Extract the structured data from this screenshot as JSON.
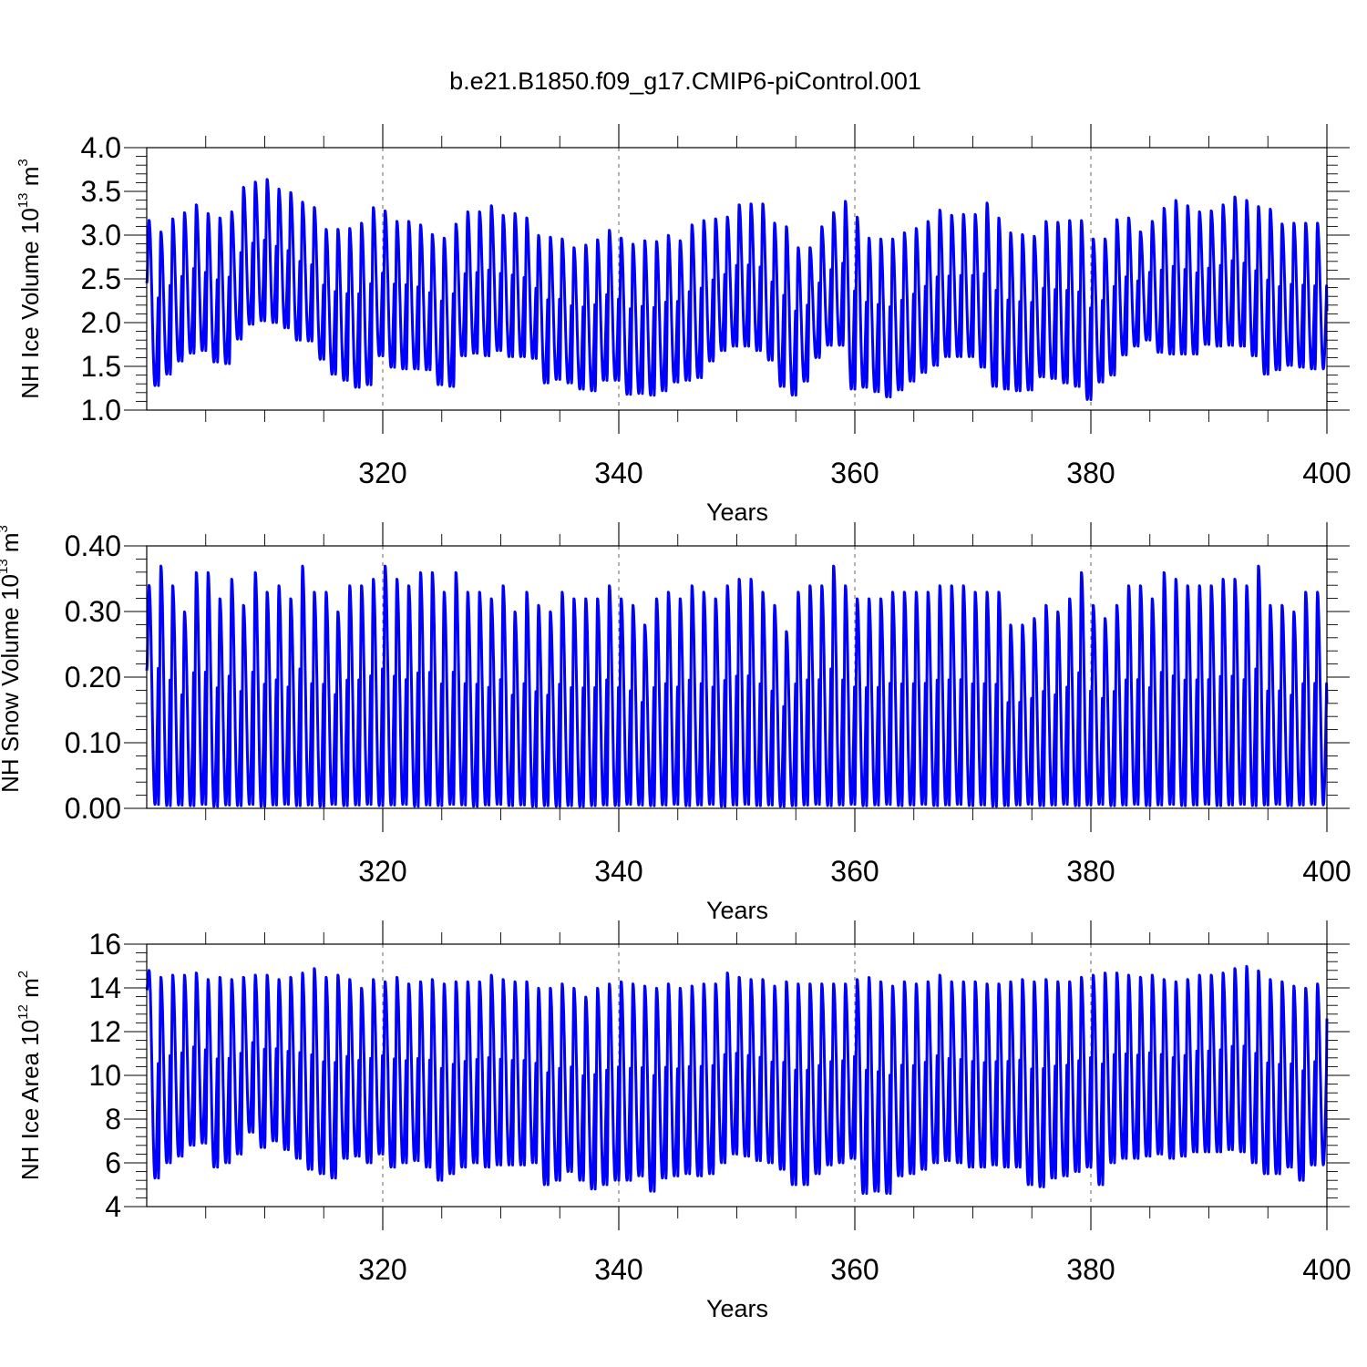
{
  "figure": {
    "title": "b.e21.B1850.f09_g17.CMIP6-piControl.001"
  },
  "chart_data": [
    {
      "type": "line",
      "name": "ice-volume",
      "ylabel_text": "NH Ice Volume 10",
      "ylabel_exp": "13",
      "ylabel_unit": "m",
      "ylabel_unit_exp": "3",
      "xlabel": "Years",
      "xlim": [
        300,
        400
      ],
      "ylim": [
        1.0,
        4.0
      ],
      "yticks": [
        "1.0",
        "1.5",
        "2.0",
        "2.5",
        "3.0",
        "3.5",
        "4.0"
      ],
      "ytick_values": [
        1.0,
        1.5,
        2.0,
        2.5,
        3.0,
        3.5,
        4.0
      ],
      "xticks": [
        "320",
        "340",
        "360",
        "380",
        "400"
      ],
      "xtick_values": [
        320,
        340,
        360,
        380,
        400
      ],
      "grid": "dashed vertical at major x ticks",
      "line_color": "#0000ff",
      "series": [
        {
          "values_note": "annual max/min per year starting 300",
          "annual_max": [
            3.17,
            3.04,
            3.19,
            3.26,
            3.35,
            3.25,
            3.2,
            3.27,
            3.55,
            3.61,
            3.64,
            3.53,
            3.49,
            3.38,
            3.32,
            3.07,
            3.07,
            3.08,
            3.14,
            3.32,
            3.28,
            3.16,
            3.16,
            3.12,
            3.01,
            2.97,
            3.13,
            3.27,
            3.27,
            3.34,
            3.23,
            3.25,
            3.2,
            3.0,
            2.98,
            2.96,
            2.86,
            2.89,
            2.95,
            3.06,
            2.97,
            2.9,
            2.94,
            2.93,
            3.0,
            2.94,
            3.12,
            3.17,
            3.19,
            3.21,
            3.35,
            3.36,
            3.36,
            3.14,
            3.1,
            2.86,
            2.86,
            3.1,
            3.26,
            3.39,
            3.21,
            2.97,
            2.96,
            2.96,
            3.03,
            3.08,
            3.16,
            3.29,
            3.23,
            3.24,
            3.24,
            3.37,
            3.2,
            3.03,
            3.01,
            2.99,
            3.16,
            3.15,
            3.17,
            3.17,
            2.96,
            2.96,
            3.18,
            3.2,
            3.04,
            3.16,
            3.31,
            3.4,
            3.34,
            3.27,
            3.28,
            3.35,
            3.44,
            3.4,
            3.33,
            3.3,
            3.13,
            3.14,
            3.14,
            3.14
          ],
          "annual_min": [
            1.28,
            1.41,
            1.56,
            1.65,
            1.68,
            1.55,
            1.53,
            1.81,
            1.98,
            2.02,
            2.0,
            1.94,
            1.8,
            1.79,
            1.58,
            1.41,
            1.34,
            1.26,
            1.29,
            1.62,
            1.49,
            1.47,
            1.47,
            1.46,
            1.29,
            1.27,
            1.62,
            1.65,
            1.62,
            1.68,
            1.61,
            1.61,
            1.59,
            1.31,
            1.35,
            1.31,
            1.24,
            1.22,
            1.34,
            1.34,
            1.18,
            1.19,
            1.17,
            1.22,
            1.32,
            1.34,
            1.37,
            1.56,
            1.68,
            1.73,
            1.73,
            1.68,
            1.57,
            1.27,
            1.17,
            1.33,
            1.6,
            1.74,
            1.74,
            1.24,
            1.26,
            1.21,
            1.15,
            1.23,
            1.33,
            1.43,
            1.51,
            1.61,
            1.61,
            1.61,
            1.49,
            1.27,
            1.24,
            1.22,
            1.23,
            1.38,
            1.36,
            1.31,
            1.27,
            1.12,
            1.32,
            1.4,
            1.63,
            1.73,
            1.8,
            1.66,
            1.64,
            1.64,
            1.64,
            1.75,
            1.73,
            1.74,
            1.73,
            1.62,
            1.41,
            1.46,
            1.51,
            1.49,
            1.47,
            1.47
          ],
          "start_value": 2.45,
          "end_value": 2.13
        }
      ]
    },
    {
      "type": "line",
      "name": "snow-volume",
      "ylabel_text": "NH Snow Volume 10",
      "ylabel_exp": "13",
      "ylabel_unit": "m",
      "ylabel_unit_exp": "3",
      "xlabel": "Years",
      "xlim": [
        300,
        400
      ],
      "ylim": [
        0.0,
        0.4
      ],
      "yticks": [
        "0.00",
        "0.10",
        "0.20",
        "0.30",
        "0.40"
      ],
      "ytick_values": [
        0.0,
        0.1,
        0.2,
        0.3,
        0.4
      ],
      "xticks": [
        "320",
        "340",
        "360",
        "380",
        "400"
      ],
      "xtick_values": [
        320,
        340,
        360,
        380,
        400
      ],
      "grid": "dashed vertical at major x ticks",
      "line_color": "#0000ff",
      "series": [
        {
          "values_note": "annual max/min per year starting 300",
          "annual_max": [
            0.34,
            0.37,
            0.34,
            0.3,
            0.36,
            0.36,
            0.32,
            0.35,
            0.31,
            0.36,
            0.33,
            0.34,
            0.32,
            0.37,
            0.33,
            0.33,
            0.3,
            0.34,
            0.34,
            0.35,
            0.37,
            0.35,
            0.34,
            0.36,
            0.36,
            0.33,
            0.36,
            0.33,
            0.33,
            0.32,
            0.34,
            0.3,
            0.33,
            0.31,
            0.3,
            0.33,
            0.32,
            0.32,
            0.32,
            0.34,
            0.32,
            0.31,
            0.28,
            0.32,
            0.33,
            0.32,
            0.34,
            0.33,
            0.32,
            0.34,
            0.35,
            0.35,
            0.33,
            0.31,
            0.27,
            0.33,
            0.34,
            0.34,
            0.37,
            0.34,
            0.32,
            0.32,
            0.32,
            0.33,
            0.33,
            0.33,
            0.33,
            0.34,
            0.34,
            0.34,
            0.33,
            0.33,
            0.33,
            0.28,
            0.28,
            0.29,
            0.31,
            0.3,
            0.32,
            0.36,
            0.31,
            0.29,
            0.31,
            0.34,
            0.34,
            0.32,
            0.36,
            0.35,
            0.34,
            0.34,
            0.34,
            0.35,
            0.35,
            0.34,
            0.37,
            0.31,
            0.31,
            0.3,
            0.33,
            0.33
          ],
          "annual_min": [
            0.006,
            0.004,
            0.005,
            0.004,
            0.006,
            0.003,
            0.005,
            0.004,
            0.006,
            0.003,
            0.005,
            0.006,
            0.004,
            0.005,
            0.003,
            0.006,
            0.004,
            0.005,
            0.006,
            0.004,
            0.005,
            0.006,
            0.003,
            0.005,
            0.004,
            0.006,
            0.005,
            0.003,
            0.005,
            0.006,
            0.004,
            0.005,
            0.003,
            0.004,
            0.003,
            0.004,
            0.003,
            0.004,
            0.005,
            0.004,
            0.006,
            0.005,
            0.004,
            0.005,
            0.006,
            0.004,
            0.005,
            0.006,
            0.003,
            0.005,
            0.006,
            0.004,
            0.005,
            0.003,
            0.004,
            0.005,
            0.006,
            0.004,
            0.005,
            0.006,
            0.004,
            0.005,
            0.006,
            0.004,
            0.005,
            0.006,
            0.004,
            0.005,
            0.006,
            0.004,
            0.005,
            0.003,
            0.004,
            0.005,
            0.006,
            0.004,
            0.005,
            0.006,
            0.004,
            0.005,
            0.006,
            0.004,
            0.005,
            0.006,
            0.004,
            0.005,
            0.006,
            0.004,
            0.005,
            0.006,
            0.004,
            0.005,
            0.006,
            0.004,
            0.005,
            0.006,
            0.004,
            0.005,
            0.006,
            0.005
          ],
          "start_value": 0.21,
          "end_value": 0.16
        }
      ]
    },
    {
      "type": "line",
      "name": "ice-area",
      "ylabel_text": "NH Ice Area 10",
      "ylabel_exp": "12",
      "ylabel_unit": "m",
      "ylabel_unit_exp": "2",
      "xlabel": "Years",
      "xlim": [
        300,
        400
      ],
      "ylim": [
        4,
        16
      ],
      "yticks": [
        "4",
        "6",
        "8",
        "10",
        "12",
        "14",
        "16"
      ],
      "ytick_values": [
        4,
        6,
        8,
        10,
        12,
        14,
        16
      ],
      "xticks": [
        "320",
        "340",
        "360",
        "380",
        "400"
      ],
      "xtick_values": [
        320,
        340,
        360,
        380,
        400
      ],
      "grid": "dashed vertical at major x ticks",
      "line_color": "#0000ff",
      "series": [
        {
          "values_note": "annual max/min per year starting 300",
          "annual_max": [
            14.8,
            14.5,
            14.6,
            14.6,
            14.7,
            14.4,
            14.5,
            14.4,
            14.5,
            14.6,
            14.6,
            14.4,
            14.5,
            14.7,
            14.9,
            14.5,
            14.6,
            14.4,
            14.0,
            14.4,
            14.3,
            14.5,
            14.2,
            14.3,
            14.4,
            14.2,
            14.3,
            14.3,
            14.3,
            14.6,
            14.4,
            14.3,
            14.3,
            14.0,
            14.0,
            14.2,
            14.0,
            13.6,
            14.0,
            14.2,
            14.3,
            14.2,
            14.1,
            14.0,
            14.2,
            14.0,
            14.1,
            14.2,
            14.2,
            14.7,
            14.5,
            14.4,
            14.4,
            14.1,
            14.3,
            14.2,
            14.2,
            14.2,
            14.2,
            14.2,
            14.4,
            14.5,
            14.3,
            14.1,
            14.3,
            14.2,
            14.3,
            14.6,
            14.3,
            14.3,
            14.3,
            14.2,
            14.2,
            14.3,
            14.4,
            14.3,
            14.4,
            14.3,
            14.3,
            14.5,
            14.6,
            14.7,
            14.7,
            14.6,
            14.5,
            14.6,
            14.4,
            14.3,
            14.4,
            14.6,
            14.6,
            14.7,
            14.9,
            15.0,
            14.8,
            14.4,
            14.3,
            14.1,
            14.0,
            14.2
          ],
          "annual_min": [
            5.3,
            6.0,
            6.3,
            6.8,
            6.9,
            5.8,
            6.0,
            6.4,
            7.4,
            6.7,
            7.0,
            6.6,
            6.2,
            5.7,
            5.5,
            5.3,
            6.2,
            6.3,
            6.0,
            6.4,
            5.8,
            6.0,
            6.1,
            5.8,
            5.2,
            5.5,
            5.8,
            6.0,
            5.8,
            5.9,
            5.9,
            5.9,
            6.0,
            5.0,
            5.2,
            5.6,
            5.2,
            4.8,
            5.0,
            5.2,
            5.2,
            5.4,
            4.7,
            5.3,
            5.4,
            5.5,
            5.4,
            5.5,
            6.0,
            6.4,
            6.3,
            6.1,
            6.0,
            5.7,
            5.0,
            5.0,
            5.5,
            5.9,
            6.0,
            6.2,
            4.6,
            4.7,
            4.6,
            5.4,
            5.5,
            5.7,
            6.0,
            6.1,
            6.0,
            5.8,
            5.8,
            5.9,
            5.8,
            5.8,
            5.0,
            4.9,
            5.3,
            5.4,
            5.6,
            5.8,
            5.0,
            6.0,
            6.2,
            6.2,
            6.3,
            6.4,
            6.2,
            6.3,
            6.5,
            6.5,
            6.5,
            6.6,
            6.5,
            6.0,
            5.5,
            5.5,
            5.8,
            5.2,
            5.9,
            5.9
          ],
          "start_value": 13.9,
          "end_value": 12.6
        }
      ]
    }
  ]
}
